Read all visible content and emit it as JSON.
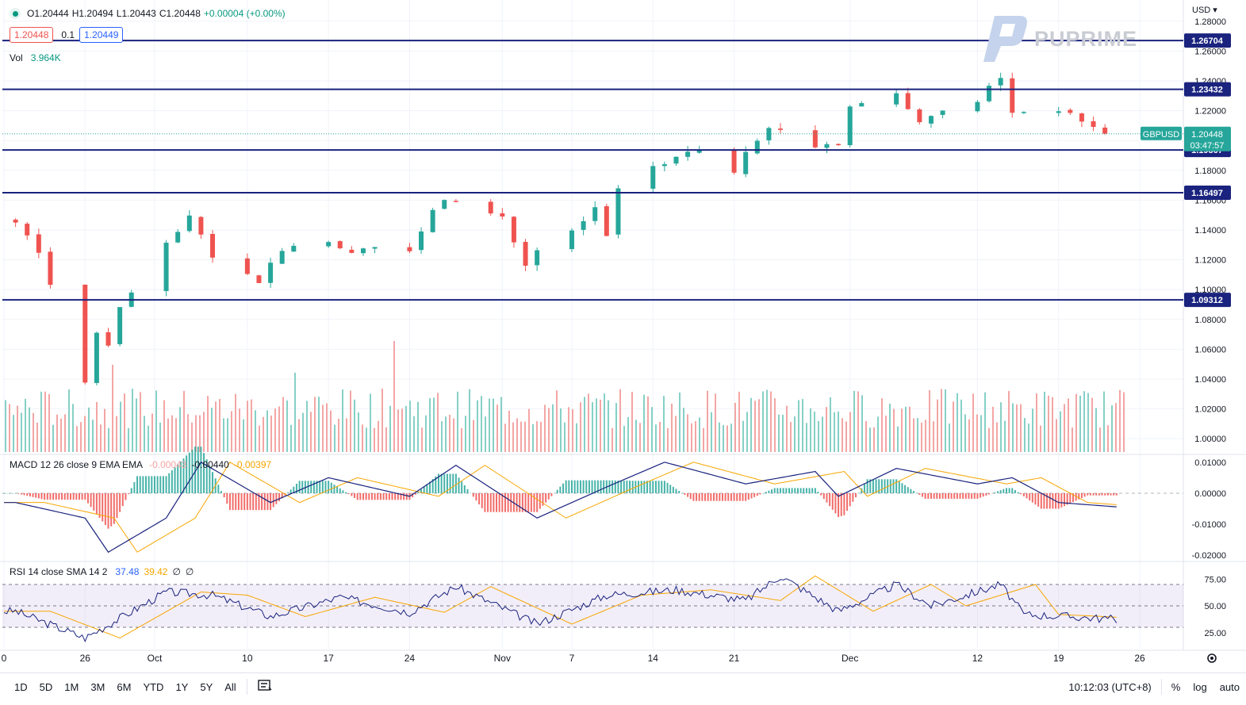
{
  "symbol_legend": {
    "open": "O1.20444",
    "high": "H1.20494",
    "low": "L1.20443",
    "close": "C1.20448",
    "change": "+0.00004 (+0.00%)",
    "bid": "1.20448",
    "spread": "0.1",
    "ask": "1.20449"
  },
  "volume_legend": {
    "label": "Vol",
    "value": "3.964K"
  },
  "macd_legend": {
    "label": "MACD 12 26 close 9 EMA EMA",
    "hist": "-0.00043",
    "macd": "-0.00440",
    "signal": "-0.00397"
  },
  "rsi_legend": {
    "label": "RSI 14 close SMA 14 2",
    "rsi": "37.48",
    "sma": "39.42",
    "extra1": "∅",
    "extra2": "∅"
  },
  "currency": "USD",
  "watermark": "PUPRIME",
  "time_display": "10:12:03 (UTC+8)",
  "ranges": [
    "1D",
    "5D",
    "1M",
    "3M",
    "6M",
    "YTD",
    "1Y",
    "5Y",
    "All"
  ],
  "scale_toggles": {
    "percent": "%",
    "log": "log",
    "auto": "auto"
  },
  "colors": {
    "up": "#26a69a",
    "down": "#ef5350",
    "macd": "#2962ff",
    "signal": "#f7a600",
    "rsi": "#2962ff",
    "level": "#1a237e"
  },
  "chart_data": [
    {
      "type": "candlestick",
      "symbol": "GBPUSD",
      "title": "",
      "last_price": "1.20448",
      "countdown": "03:47:57",
      "y_ticks": [
        "1.28000",
        "1.26000",
        "1.24000",
        "1.22000",
        "1.20000",
        "1.18000",
        "1.16000",
        "1.14000",
        "1.12000",
        "1.10000",
        "1.08000",
        "1.06000",
        "1.04000",
        "1.02000",
        "1.00000"
      ],
      "ylim": [
        0.99,
        1.29
      ],
      "x_ticks": [
        "0",
        "26",
        "Oct",
        "10",
        "17",
        "24",
        "Nov",
        "7",
        "14",
        "21",
        "Dec",
        "12",
        "19",
        "26"
      ],
      "horizontal_levels": [
        "1.26704",
        "1.23432",
        "1.19367",
        "1.16497",
        "1.09312"
      ],
      "close_path": [
        {
          "x": "Sep 20",
          "y": 1.145
        },
        {
          "x": "Sep 22",
          "y": 1.127
        },
        {
          "x": "Sep 26",
          "y": 1.038
        },
        {
          "x": "Sep 27",
          "y": 1.071
        },
        {
          "x": "Sep 28",
          "y": 1.065
        },
        {
          "x": "Sep 29",
          "y": 1.086
        },
        {
          "x": "Oct 3",
          "y": 1.132
        },
        {
          "x": "Oct 5",
          "y": 1.148
        },
        {
          "x": "Oct 7",
          "y": 1.124
        },
        {
          "x": "Oct 11",
          "y": 1.106
        },
        {
          "x": "Oct 13",
          "y": 1.128
        },
        {
          "x": "Oct 17",
          "y": 1.132
        },
        {
          "x": "Oct 20",
          "y": 1.125
        },
        {
          "x": "Oct 24",
          "y": 1.128
        },
        {
          "x": "Oct 27",
          "y": 1.162
        },
        {
          "x": "Nov 1",
          "y": 1.148
        },
        {
          "x": "Nov 3",
          "y": 1.118
        },
        {
          "x": "Nov 7",
          "y": 1.14
        },
        {
          "x": "Nov 9",
          "y": 1.155
        },
        {
          "x": "Nov 10",
          "y": 1.137
        },
        {
          "x": "Nov 11",
          "y": 1.17
        },
        {
          "x": "Nov 15",
          "y": 1.185
        },
        {
          "x": "Nov 17",
          "y": 1.195
        },
        {
          "x": "Nov 21",
          "y": 1.18
        },
        {
          "x": "Nov 24",
          "y": 1.21
        },
        {
          "x": "Nov 28",
          "y": 1.196
        },
        {
          "x": "Nov 30",
          "y": 1.196
        },
        {
          "x": "Dec 1",
          "y": 1.225
        },
        {
          "x": "Dec 5",
          "y": 1.232
        },
        {
          "x": "Dec 7",
          "y": 1.215
        },
        {
          "x": "Dec 12",
          "y": 1.225
        },
        {
          "x": "Dec 14",
          "y": 1.243
        },
        {
          "x": "Dec 15",
          "y": 1.219
        },
        {
          "x": "Dec 19",
          "y": 1.22
        },
        {
          "x": "Dec 23",
          "y": 1.206
        },
        {
          "x": "Dec 24",
          "y": 1.2045
        }
      ]
    },
    {
      "type": "bar",
      "name": "Vol",
      "note": "approx. daily volume profile, most bars between 1.0 and 2.0 units, spikes near Sep 30 and Oct 24"
    },
    {
      "type": "line",
      "name": "MACD",
      "y_ticks": [
        "0.01000",
        "0.00000",
        "-0.01000",
        "-0.02000"
      ],
      "ylim": [
        -0.022,
        0.012
      ],
      "macd_path": [
        {
          "x": "Sep 20",
          "y": -0.003
        },
        {
          "x": "Sep 26",
          "y": -0.008
        },
        {
          "x": "Sep 28",
          "y": -0.019
        },
        {
          "x": "Oct 3",
          "y": -0.008
        },
        {
          "x": "Oct 6",
          "y": 0.01
        },
        {
          "x": "Oct 12",
          "y": -0.003
        },
        {
          "x": "Oct 17",
          "y": 0.005
        },
        {
          "x": "Oct 24",
          "y": -0.001
        },
        {
          "x": "Oct 28",
          "y": 0.009
        },
        {
          "x": "Nov 4",
          "y": -0.008
        },
        {
          "x": "Nov 10",
          "y": 0.002
        },
        {
          "x": "Nov 15",
          "y": 0.01
        },
        {
          "x": "Nov 22",
          "y": 0.003
        },
        {
          "x": "Nov 28",
          "y": 0.007
        },
        {
          "x": "Nov 30",
          "y": -0.001
        },
        {
          "x": "Dec 5",
          "y": 0.008
        },
        {
          "x": "Dec 12",
          "y": 0.003
        },
        {
          "x": "Dec 15",
          "y": 0.005
        },
        {
          "x": "Dec 19",
          "y": -0.003
        },
        {
          "x": "Dec 24",
          "y": -0.0044
        }
      ]
    },
    {
      "type": "line",
      "name": "RSI",
      "y_ticks": [
        "75.00",
        "50.00",
        "25.00"
      ],
      "ylim": [
        10,
        90
      ],
      "band": [
        30,
        70
      ],
      "rsi_path": [
        {
          "x": "Sep 20",
          "y": 45
        },
        {
          "x": "Sep 26",
          "y": 20
        },
        {
          "x": "Oct 3",
          "y": 63
        },
        {
          "x": "Oct 7",
          "y": 60
        },
        {
          "x": "Oct 12",
          "y": 40
        },
        {
          "x": "Oct 18",
          "y": 58
        },
        {
          "x": "Oct 24",
          "y": 44
        },
        {
          "x": "Oct 28",
          "y": 68
        },
        {
          "x": "Nov 4",
          "y": 33
        },
        {
          "x": "Nov 10",
          "y": 60
        },
        {
          "x": "Nov 16",
          "y": 65
        },
        {
          "x": "Nov 22",
          "y": 55
        },
        {
          "x": "Nov 25",
          "y": 78
        },
        {
          "x": "Nov 30",
          "y": 45
        },
        {
          "x": "Dec 5",
          "y": 70
        },
        {
          "x": "Dec 8",
          "y": 50
        },
        {
          "x": "Dec 14",
          "y": 70
        },
        {
          "x": "Dec 16",
          "y": 42
        },
        {
          "x": "Dec 20",
          "y": 40
        },
        {
          "x": "Dec 24",
          "y": 37.48
        }
      ]
    }
  ]
}
